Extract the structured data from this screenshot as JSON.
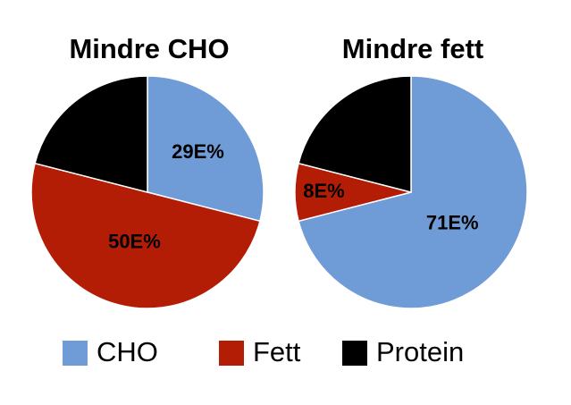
{
  "chart_data": [
    {
      "type": "pie",
      "title": "Mindre CHO",
      "categories": [
        "CHO",
        "Fett",
        "Protein"
      ],
      "values": [
        29,
        50,
        21
      ],
      "value_labels": [
        "29E%",
        "50E%",
        null
      ],
      "colors": [
        "#6f9bd6",
        "#b31d06",
        "#000000"
      ],
      "legend": "bottom"
    },
    {
      "type": "pie",
      "title": "Mindre fett",
      "categories": [
        "CHO",
        "Fett",
        "Protein"
      ],
      "values": [
        71,
        8,
        21
      ],
      "value_labels": [
        "71E%",
        "8E%",
        null
      ],
      "colors": [
        "#6f9bd6",
        "#b31d06",
        "#000000"
      ]
    }
  ]
}
